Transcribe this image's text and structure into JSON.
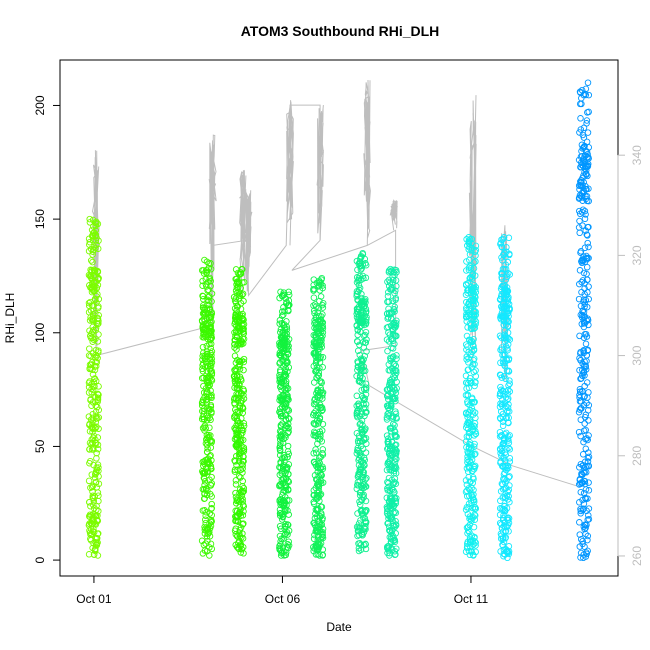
{
  "chart_data": {
    "type": "scatter",
    "title": "ATOM3 Southbound RHi_DLH",
    "xlabel": "Date",
    "ylabel": "RHi_DLH",
    "x_ticks": [
      "Oct 01",
      "Oct 06",
      "Oct 11"
    ],
    "y_ticks": [
      "0",
      "50",
      "100",
      "150",
      "200"
    ],
    "y2_ticks": [
      "260",
      "280",
      "300",
      "320",
      "340"
    ],
    "xlim_days": [
      0.1,
      14.9
    ],
    "ylim": [
      -7,
      220
    ],
    "y2lim": [
      256,
      359
    ],
    "point_clusters": [
      {
        "day": 1.0,
        "ymin": 2,
        "ymax": 150,
        "color": "#7CFC00"
      },
      {
        "day": 4.0,
        "ymin": 2,
        "ymax": 132,
        "color": "#3CF800"
      },
      {
        "day": 4.85,
        "ymin": 3,
        "ymax": 128,
        "color": "#33F800"
      },
      {
        "day": 6.05,
        "ymin": 2,
        "ymax": 118,
        "color": "#12F23E"
      },
      {
        "day": 6.95,
        "ymin": 2,
        "ymax": 124,
        "color": "#12F25A"
      },
      {
        "day": 8.1,
        "ymin": 4,
        "ymax": 135,
        "color": "#10F090"
      },
      {
        "day": 8.9,
        "ymin": 2,
        "ymax": 128,
        "color": "#10F0A8"
      },
      {
        "day": 11.0,
        "ymin": 2,
        "ymax": 142,
        "color": "#14F0F0"
      },
      {
        "day": 11.9,
        "ymin": 1,
        "ymax": 142,
        "color": "#14E8FF"
      },
      {
        "day": 14.0,
        "ymin": 1,
        "ymax": 210,
        "color": "#0096FF"
      }
    ],
    "temperature_line": {
      "points": [
        {
          "day": 1.05,
          "value": 300
        },
        {
          "day": 4.15,
          "value": 306
        },
        {
          "day": 4.15,
          "value": 322
        },
        {
          "day": 5.05,
          "value": 323
        },
        {
          "day": 5.1,
          "value": 312
        },
        {
          "day": 6.1,
          "value": 322
        },
        {
          "day": 6.2,
          "value": 350
        },
        {
          "day": 7.0,
          "value": 350
        },
        {
          "day": 7.0,
          "value": 323
        },
        {
          "day": 6.25,
          "value": 317
        },
        {
          "day": 8.25,
          "value": 322
        },
        {
          "day": 9.0,
          "value": 325
        },
        {
          "day": 9.0,
          "value": 302
        },
        {
          "day": 8.1,
          "value": 301
        },
        {
          "day": 8.3,
          "value": 294
        },
        {
          "day": 11.0,
          "value": 282
        },
        {
          "day": 12.1,
          "value": 278
        },
        {
          "day": 13.8,
          "value": 274
        }
      ],
      "spikes": [
        {
          "day": 1.05,
          "base": 300,
          "top": 341
        },
        {
          "day": 4.15,
          "base": 306,
          "top": 344
        },
        {
          "day": 4.95,
          "base": 312,
          "top": 337
        },
        {
          "day": 5.1,
          "base": 312,
          "top": 333
        },
        {
          "day": 6.2,
          "base": 322,
          "top": 351
        },
        {
          "day": 7.0,
          "base": 323,
          "top": 350
        },
        {
          "day": 8.25,
          "base": 322,
          "top": 355
        },
        {
          "day": 8.95,
          "base": 325,
          "top": 331
        },
        {
          "day": 11.05,
          "base": 298,
          "top": 352
        },
        {
          "day": 11.9,
          "base": 295,
          "top": 326
        }
      ],
      "color": "#BEBEBE"
    },
    "grid": false,
    "legend": "none"
  }
}
